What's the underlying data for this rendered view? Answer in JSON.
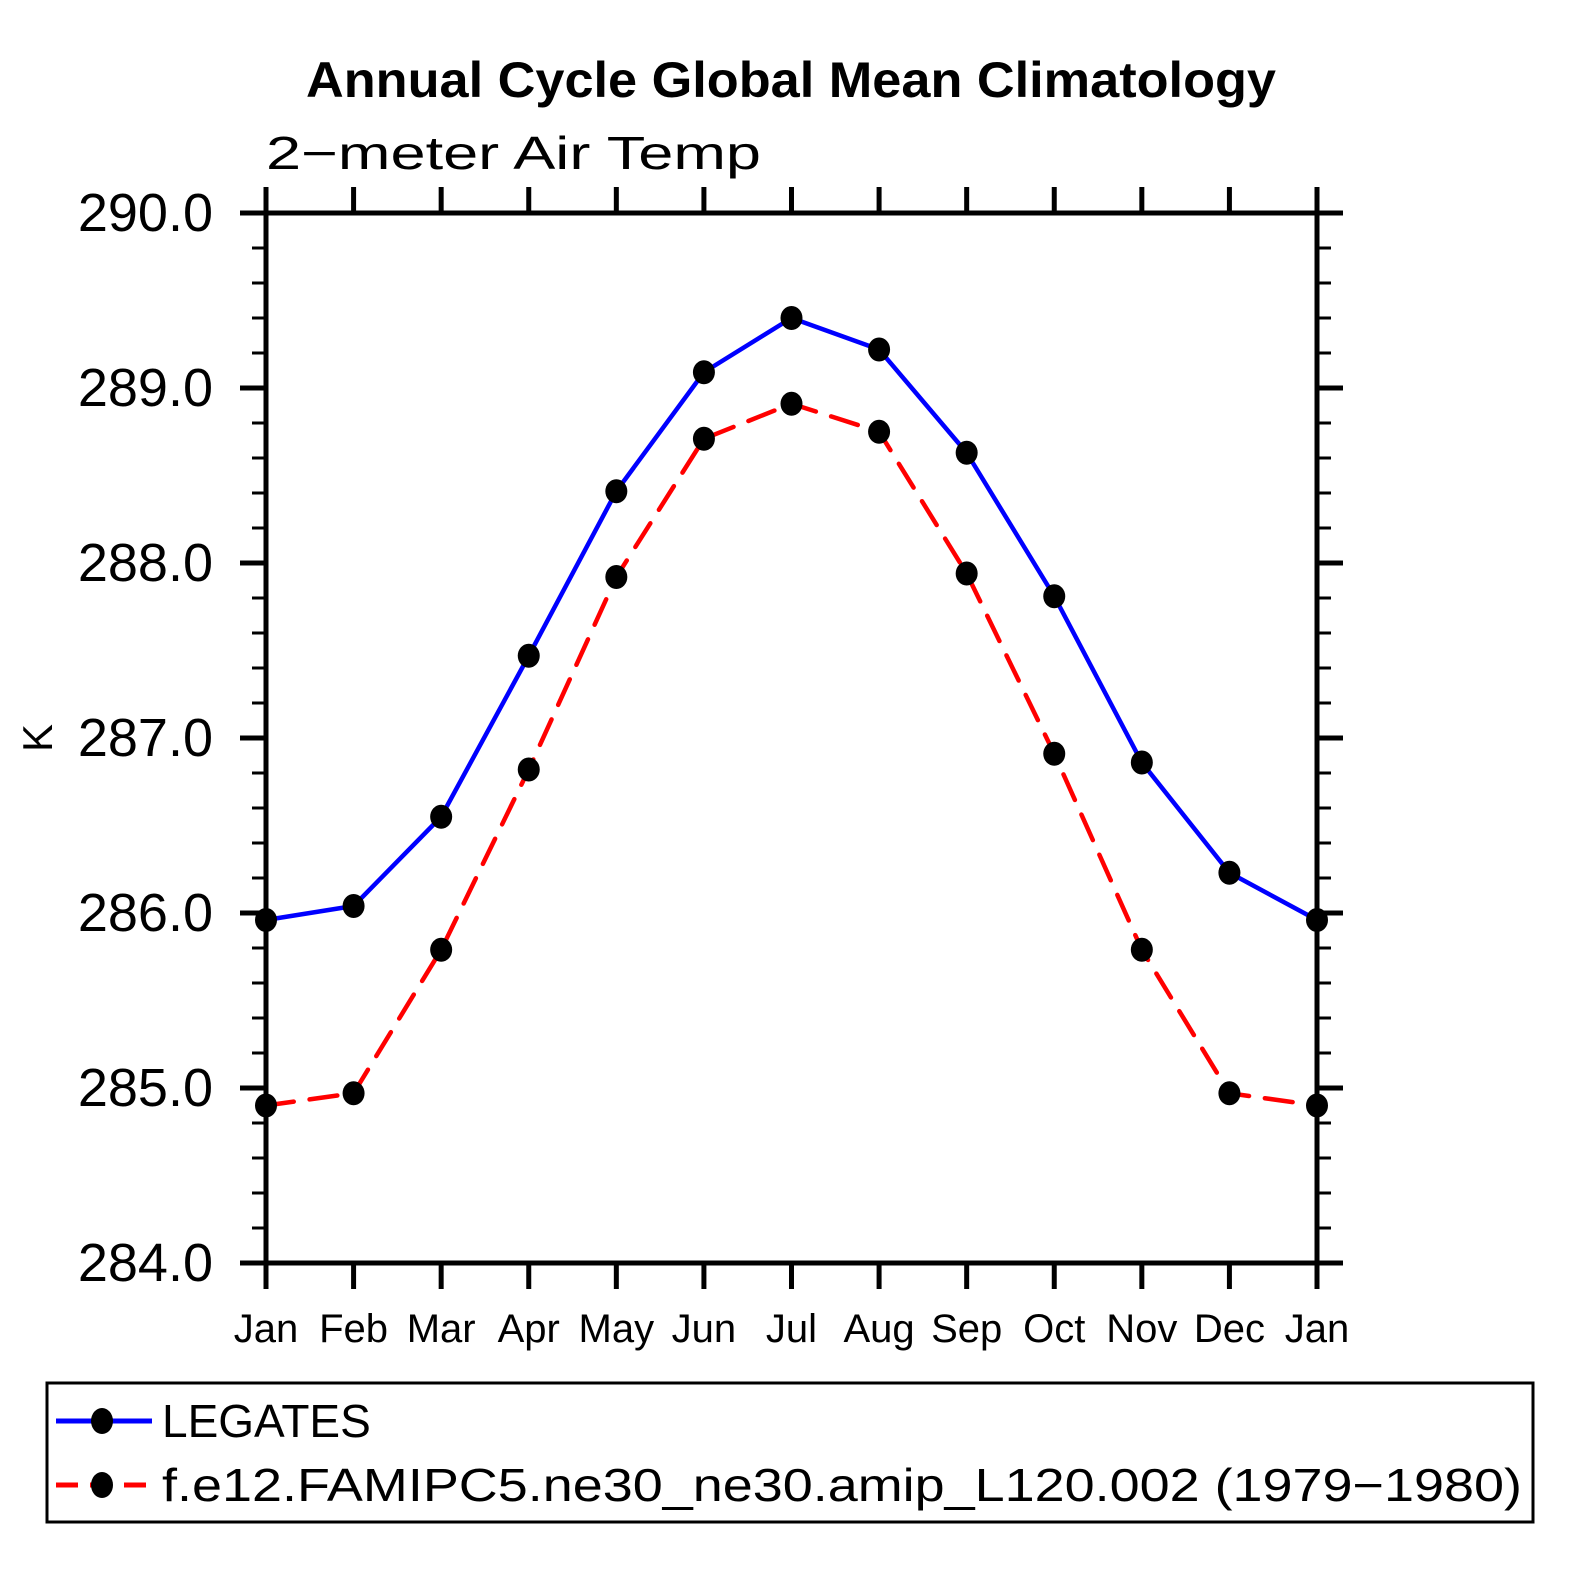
{
  "page": {
    "title": "Annual Cycle Global Mean Climatology",
    "subtitle": "2−meter Air Temp",
    "ylabel": "K"
  },
  "chart_data": {
    "type": "line",
    "title": "Annual Cycle Global Mean Climatology",
    "subtitle": "2−meter Air Temp",
    "xlabel": "",
    "ylabel": "K",
    "categories": [
      "Jan",
      "Feb",
      "Mar",
      "Apr",
      "May",
      "Jun",
      "Jul",
      "Aug",
      "Sep",
      "Oct",
      "Nov",
      "Dec",
      "Jan"
    ],
    "ylim": [
      284.0,
      290.0
    ],
    "ytick_major_values": [
      290.0,
      289.0,
      288.0,
      287.0,
      286.0,
      285.0,
      284.0
    ],
    "ytick_major_labels": [
      "290.0",
      "289.0",
      "288.0",
      "287.0",
      "286.0",
      "285.0",
      "284.0"
    ],
    "ytick_minor_step": 0.2,
    "grid": false,
    "legend_position": "bottom-left-box",
    "frame_color": "#000000",
    "marker_color": "#000000",
    "series": [
      {
        "name": "LEGATES",
        "color": "#0000ff",
        "style": "solid",
        "marker": "circle",
        "values": [
          285.96,
          286.04,
          286.55,
          287.47,
          288.41,
          289.09,
          289.4,
          289.22,
          288.63,
          287.81,
          286.86,
          286.23,
          285.96
        ]
      },
      {
        "name": "f.e12.FAMIPC5.ne30_ne30.amip_L120.002 (1979−1980)",
        "color": "#ff0000",
        "style": "dashed",
        "marker": "circle",
        "values": [
          284.9,
          284.97,
          285.79,
          286.82,
          287.92,
          288.71,
          288.91,
          288.75,
          287.94,
          286.91,
          285.79,
          284.97,
          284.9
        ]
      }
    ]
  }
}
